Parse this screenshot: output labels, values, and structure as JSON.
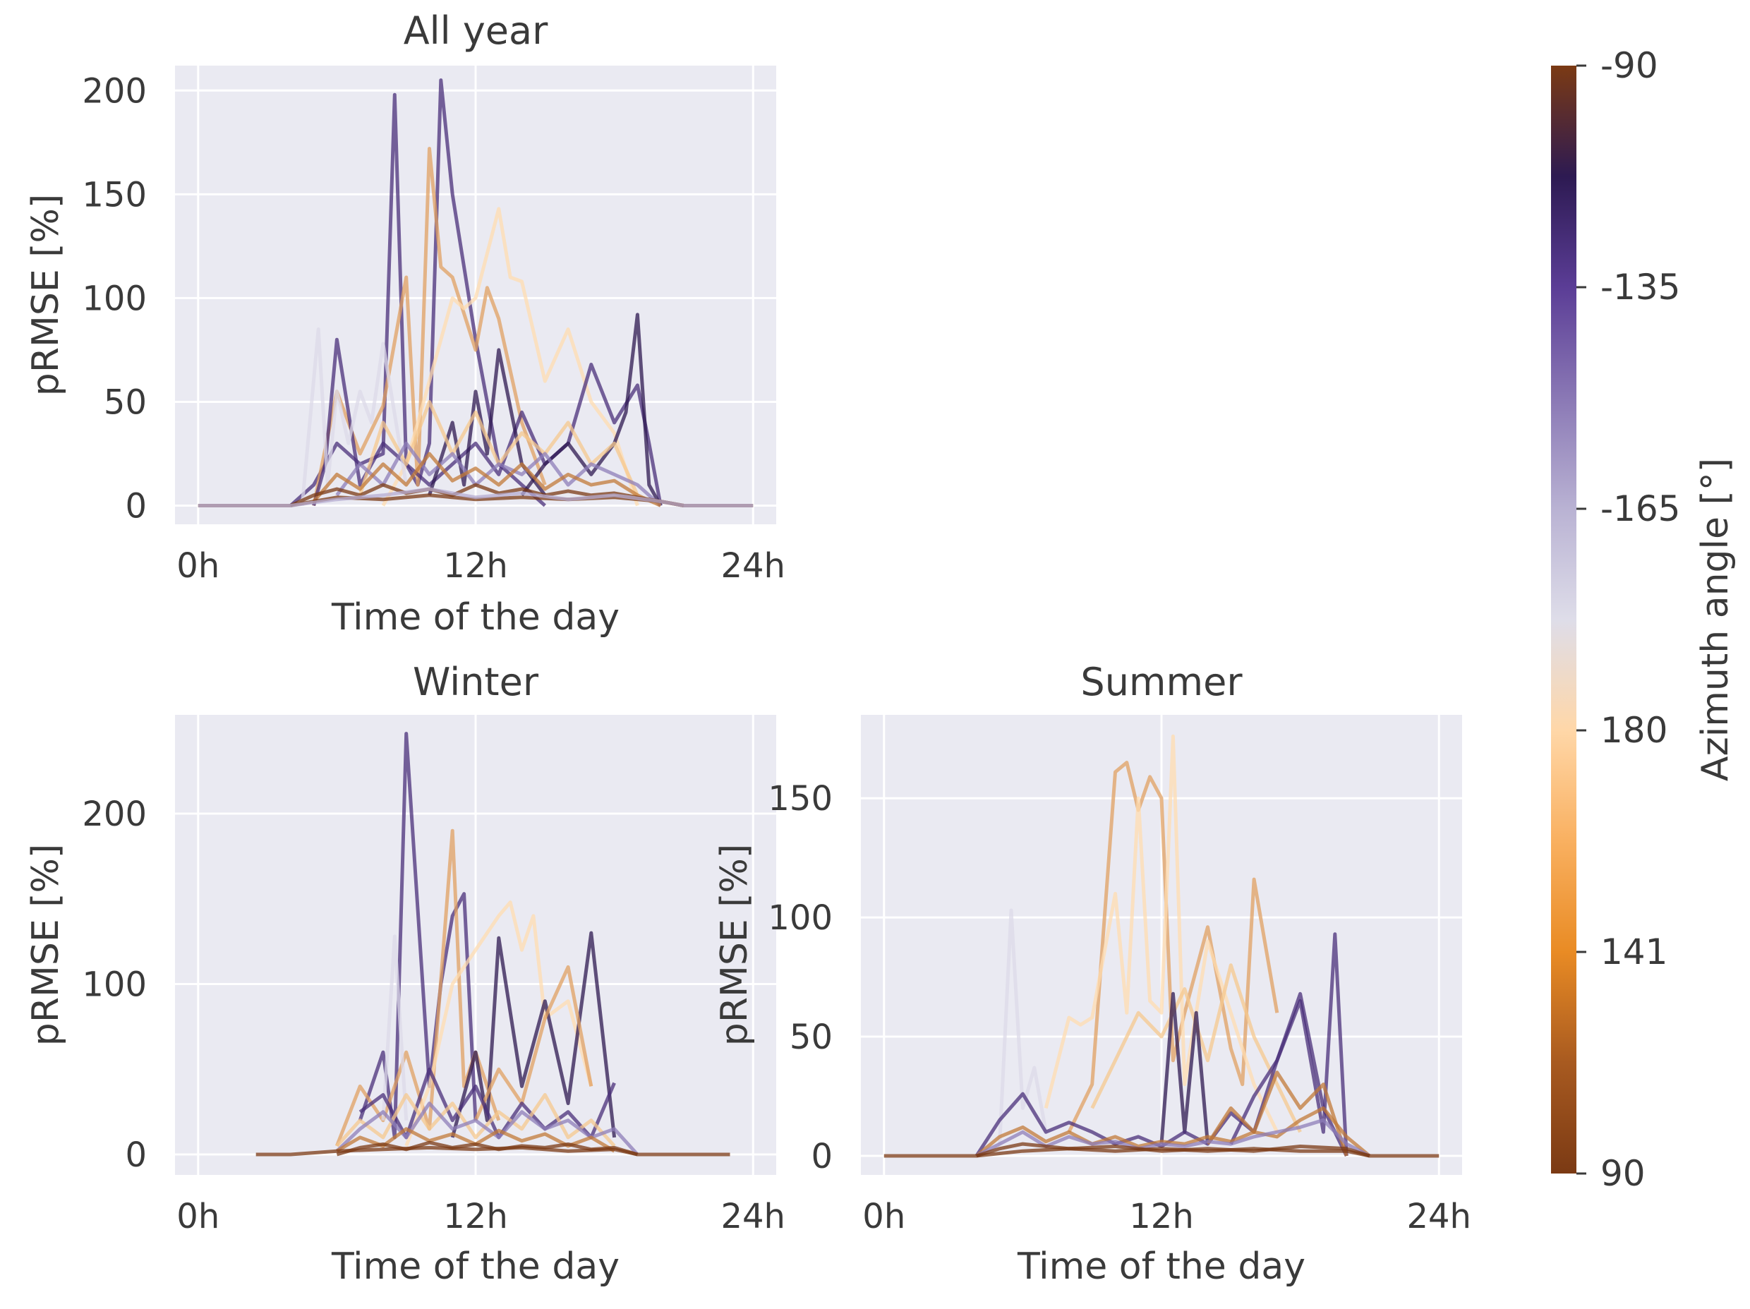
{
  "colorbar": {
    "label": "Azimuth angle [°]",
    "ticks": [
      "-90",
      "-135",
      "-165",
      "180",
      "141",
      "90"
    ],
    "stops": [
      "#7b3a14",
      "#2d1a52",
      "#5b3d96",
      "#8a78b5",
      "#b9b2d3",
      "#dedde9",
      "#ffd7a8",
      "#f9b060",
      "#e98b24",
      "#a85a20",
      "#7b3a14"
    ]
  },
  "colors": {
    "panel_bg": "#eaeaf2",
    "grid": "#ffffff",
    "purples": [
      "#2e1850",
      "#4a2f7a",
      "#6b55a0",
      "#8d7db8",
      "#b6acd2",
      "#dcdae8"
    ],
    "oranges": [
      "#7b3a14",
      "#9c5422",
      "#c17a38",
      "#e0a062",
      "#f6c88e",
      "#ffdcb0"
    ]
  },
  "chart_data": [
    {
      "type": "line",
      "title": "All year",
      "xlabel": "Time of the day",
      "ylabel": "pRMSE [%]",
      "xticks": [
        "0h",
        "12h",
        "24h"
      ],
      "yticks": [
        "0",
        "50",
        "100",
        "150",
        "200"
      ],
      "xlim": [
        -1,
        25
      ],
      "ylim": [
        -9,
        212
      ],
      "series": [
        {
          "azimuth": -130,
          "x": [
            4,
            5,
            6,
            7,
            8,
            8.5,
            9,
            9.5,
            10,
            10.5,
            11,
            12,
            13,
            14,
            15
          ],
          "y": [
            0,
            10,
            30,
            20,
            25,
            198,
            20,
            10,
            30,
            205,
            150,
            80,
            20,
            10,
            0
          ]
        },
        {
          "azimuth": 150,
          "x": [
            5,
            6,
            7,
            8,
            9,
            9.5,
            10,
            10.5,
            11,
            12,
            12.5,
            13,
            14,
            15
          ],
          "y": [
            0,
            55,
            25,
            48,
            110,
            10,
            172,
            115,
            110,
            75,
            105,
            90,
            40,
            10
          ]
        },
        {
          "azimuth": 175,
          "x": [
            8,
            9,
            10,
            11,
            11.5,
            12,
            13,
            13.5,
            14,
            15,
            16,
            17,
            18,
            19
          ],
          "y": [
            0,
            20,
            60,
            100,
            95,
            100,
            143,
            110,
            108,
            60,
            85,
            50,
            35,
            0
          ]
        },
        {
          "azimuth": -125,
          "x": [
            5,
            5.5,
            6,
            7,
            8,
            9,
            10,
            12,
            13,
            14,
            15,
            16,
            17,
            18,
            19,
            19.5,
            20
          ],
          "y": [
            0,
            20,
            80,
            10,
            30,
            20,
            10,
            30,
            15,
            45,
            20,
            30,
            68,
            40,
            58,
            30,
            0
          ]
        },
        {
          "azimuth": -120,
          "x": [
            14,
            15,
            16,
            17,
            18,
            18.5,
            19,
            19.5,
            20
          ],
          "y": [
            5,
            20,
            30,
            15,
            30,
            45,
            92,
            10,
            0
          ]
        },
        {
          "azimuth": -170,
          "x": [
            4.5,
            5.2,
            5.6,
            6,
            6.5,
            7,
            7.5,
            8,
            9
          ],
          "y": [
            0,
            85,
            10,
            55,
            30,
            55,
            40,
            78,
            10
          ]
        },
        {
          "azimuth": -110,
          "x": [
            10,
            11,
            11.5,
            12,
            12.5,
            13,
            14,
            15
          ],
          "y": [
            5,
            40,
            10,
            55,
            25,
            75,
            20,
            5
          ]
        },
        {
          "azimuth": 160,
          "x": [
            7,
            8,
            9,
            10,
            11,
            12,
            13,
            14,
            15,
            16,
            17,
            18,
            19
          ],
          "y": [
            5,
            40,
            20,
            50,
            25,
            45,
            20,
            35,
            25,
            40,
            20,
            30,
            5
          ]
        },
        {
          "azimuth": -150,
          "x": [
            6,
            7,
            8,
            9,
            10,
            11,
            12,
            13,
            14,
            15,
            16,
            17,
            18,
            19,
            20
          ],
          "y": [
            5,
            20,
            10,
            30,
            15,
            25,
            10,
            20,
            15,
            25,
            10,
            20,
            15,
            10,
            0
          ]
        },
        {
          "azimuth": 120,
          "x": [
            5,
            6,
            7,
            8,
            9,
            10,
            11,
            12,
            13,
            14,
            15,
            16,
            17,
            18,
            19,
            20
          ],
          "y": [
            2,
            15,
            8,
            20,
            10,
            25,
            12,
            18,
            10,
            20,
            8,
            15,
            10,
            12,
            5,
            0
          ]
        },
        {
          "azimuth": 100,
          "x": [
            4,
            5,
            6,
            7,
            8,
            9,
            10,
            11,
            12,
            13,
            14,
            15,
            16,
            17,
            18,
            19,
            20,
            21
          ],
          "y": [
            0,
            5,
            8,
            5,
            10,
            6,
            8,
            5,
            10,
            6,
            8,
            5,
            7,
            5,
            6,
            4,
            2,
            0
          ]
        },
        {
          "azimuth": 95,
          "x": [
            0,
            4,
            5,
            6,
            8,
            10,
            12,
            14,
            16,
            18,
            20,
            21,
            24
          ],
          "y": [
            0,
            0,
            2,
            4,
            3,
            5,
            3,
            4,
            3,
            4,
            2,
            0,
            0
          ]
        },
        {
          "azimuth": -160,
          "x": [
            0,
            4,
            6,
            8,
            10,
            12,
            14,
            16,
            18,
            20,
            21,
            24
          ],
          "y": [
            0,
            0,
            3,
            5,
            8,
            4,
            6,
            3,
            5,
            2,
            0,
            0
          ]
        }
      ]
    },
    {
      "type": "line",
      "title": "Winter",
      "xlabel": "Time of the day",
      "ylabel": "pRMSE [%]",
      "xticks": [
        "0h",
        "12h",
        "24h"
      ],
      "yticks": [
        "0",
        "100",
        "200"
      ],
      "xlim": [
        -1,
        25
      ],
      "ylim": [
        -12,
        258
      ],
      "series": [
        {
          "azimuth": -130,
          "x": [
            7,
            8,
            8.5,
            9,
            10,
            10.5,
            11,
            11.5,
            12
          ],
          "y": [
            20,
            60,
            10,
            247,
            40,
            100,
            140,
            153,
            20
          ]
        },
        {
          "azimuth": 150,
          "x": [
            6,
            7,
            8,
            9,
            10,
            11,
            11.5,
            12,
            13
          ],
          "y": [
            5,
            40,
            20,
            60,
            15,
            190,
            40,
            60,
            20
          ]
        },
        {
          "azimuth": 175,
          "x": [
            9,
            10,
            11,
            12,
            13,
            13.5,
            14,
            14.5,
            15,
            16,
            17
          ],
          "y": [
            5,
            40,
            100,
            120,
            140,
            148,
            120,
            140,
            80,
            90,
            40
          ]
        },
        {
          "azimuth": -170,
          "x": [
            8,
            8.5,
            9
          ],
          "y": [
            20,
            128,
            20
          ]
        },
        {
          "azimuth": -110,
          "x": [
            11,
            12,
            12.5,
            13,
            14,
            15,
            16,
            17,
            18
          ],
          "y": [
            10,
            60,
            20,
            127,
            40,
            90,
            30,
            130,
            10
          ]
        },
        {
          "azimuth": 140,
          "x": [
            12,
            13,
            14,
            15,
            16,
            17
          ],
          "y": [
            20,
            50,
            30,
            80,
            110,
            40
          ]
        },
        {
          "azimuth": -125,
          "x": [
            7,
            8,
            9,
            10,
            11,
            12,
            13,
            14,
            15,
            16,
            17,
            18
          ],
          "y": [
            25,
            35,
            10,
            50,
            20,
            40,
            10,
            30,
            15,
            25,
            10,
            42
          ]
        },
        {
          "azimuth": 160,
          "x": [
            6,
            7,
            8,
            9,
            10,
            11,
            12,
            13,
            14,
            15,
            16,
            17,
            18
          ],
          "y": [
            5,
            20,
            10,
            35,
            15,
            30,
            10,
            25,
            15,
            35,
            10,
            20,
            5
          ]
        },
        {
          "azimuth": -150,
          "x": [
            6,
            7,
            8,
            9,
            10,
            11,
            12,
            13,
            14,
            15,
            16,
            17,
            18,
            19
          ],
          "y": [
            2,
            15,
            25,
            10,
            30,
            15,
            20,
            10,
            25,
            15,
            20,
            10,
            15,
            0
          ]
        },
        {
          "azimuth": 120,
          "x": [
            6,
            7,
            8,
            9,
            10,
            11,
            12,
            13,
            14,
            15,
            16,
            17,
            18
          ],
          "y": [
            2,
            10,
            5,
            15,
            8,
            12,
            6,
            14,
            8,
            12,
            5,
            10,
            2
          ]
        },
        {
          "azimuth": 100,
          "x": [
            6,
            7,
            8,
            9,
            10,
            11,
            12,
            13,
            14,
            15,
            16,
            17,
            18,
            19
          ],
          "y": [
            0,
            4,
            6,
            3,
            7,
            4,
            6,
            3,
            5,
            4,
            6,
            3,
            4,
            0
          ]
        },
        {
          "azimuth": 95,
          "x": [
            2.5,
            4,
            6,
            8,
            10,
            12,
            14,
            16,
            18,
            19,
            23
          ],
          "y": [
            0,
            0,
            2,
            3,
            4,
            3,
            4,
            2,
            3,
            0,
            0
          ]
        }
      ]
    },
    {
      "type": "line",
      "title": "Summer",
      "xlabel": "Time of the day",
      "ylabel": "pRMSE [%]",
      "xticks": [
        "0h",
        "12h",
        "24h"
      ],
      "yticks": [
        "0",
        "50",
        "100",
        "150"
      ],
      "xlim": [
        -1,
        25
      ],
      "ylim": [
        -8,
        185
      ],
      "series": [
        {
          "azimuth": 150,
          "x": [
            8,
            9,
            10,
            10.5,
            11,
            11.5,
            12,
            12.5,
            13,
            14,
            15,
            15.5,
            16,
            17
          ],
          "y": [
            10,
            30,
            161,
            165,
            145,
            159,
            150,
            40,
            60,
            96,
            45,
            30,
            116,
            60
          ]
        },
        {
          "azimuth": 175,
          "x": [
            7,
            8,
            8.5,
            9,
            10,
            10.5,
            11,
            11.5,
            12,
            12.5,
            13,
            14,
            15,
            16,
            17
          ],
          "y": [
            20,
            58,
            55,
            58,
            110,
            60,
            150,
            65,
            60,
            176,
            30,
            90,
            60,
            30,
            10
          ]
        },
        {
          "azimuth": 165,
          "x": [
            9,
            10,
            11,
            12,
            13,
            14,
            15,
            16,
            17,
            18
          ],
          "y": [
            20,
            40,
            60,
            50,
            70,
            40,
            80,
            50,
            30,
            10
          ]
        },
        {
          "azimuth": -170,
          "x": [
            5,
            5.5,
            6,
            6.5,
            7
          ],
          "y": [
            5,
            103,
            20,
            37,
            10
          ]
        },
        {
          "azimuth": -125,
          "x": [
            15,
            16,
            17,
            18,
            19,
            19.5,
            20
          ],
          "y": [
            5,
            25,
            40,
            65,
            10,
            93,
            0
          ]
        },
        {
          "azimuth": -110,
          "x": [
            12,
            12.5,
            13,
            13.5,
            14
          ],
          "y": [
            5,
            68,
            10,
            60,
            5
          ]
        },
        {
          "azimuth": -130,
          "x": [
            4,
            5,
            6,
            7,
            8,
            9,
            10,
            11,
            12,
            13,
            14,
            15,
            16,
            17,
            18,
            19,
            20
          ],
          "y": [
            0,
            15,
            26,
            10,
            14,
            10,
            5,
            8,
            4,
            10,
            5,
            18,
            10,
            40,
            68,
            20,
            0
          ]
        },
        {
          "azimuth": 130,
          "x": [
            14,
            15,
            16,
            17,
            18,
            19,
            20
          ],
          "y": [
            5,
            20,
            10,
            35,
            20,
            30,
            0
          ]
        },
        {
          "azimuth": 120,
          "x": [
            4,
            5,
            6,
            7,
            8,
            9,
            10,
            11,
            12,
            13,
            14,
            15,
            16,
            17,
            18,
            19,
            20,
            21
          ],
          "y": [
            0,
            8,
            12,
            6,
            10,
            5,
            8,
            4,
            6,
            5,
            8,
            6,
            10,
            8,
            15,
            20,
            8,
            0
          ]
        },
        {
          "azimuth": -150,
          "x": [
            4,
            5,
            6,
            7,
            8,
            9,
            10,
            11,
            12,
            13,
            14,
            15,
            16,
            17,
            18,
            19,
            20,
            21
          ],
          "y": [
            0,
            5,
            10,
            4,
            8,
            5,
            6,
            3,
            5,
            4,
            6,
            5,
            8,
            10,
            12,
            15,
            5,
            0
          ]
        },
        {
          "azimuth": 100,
          "x": [
            4,
            5,
            6,
            8,
            10,
            12,
            14,
            16,
            18,
            20,
            21
          ],
          "y": [
            0,
            3,
            5,
            3,
            4,
            2,
            3,
            2,
            4,
            3,
            0
          ]
        },
        {
          "azimuth": 95,
          "x": [
            0,
            4,
            6,
            8,
            10,
            12,
            14,
            16,
            18,
            20,
            21,
            24
          ],
          "y": [
            0,
            0,
            2,
            3,
            2,
            3,
            2,
            3,
            2,
            2,
            0,
            0
          ]
        }
      ]
    }
  ]
}
